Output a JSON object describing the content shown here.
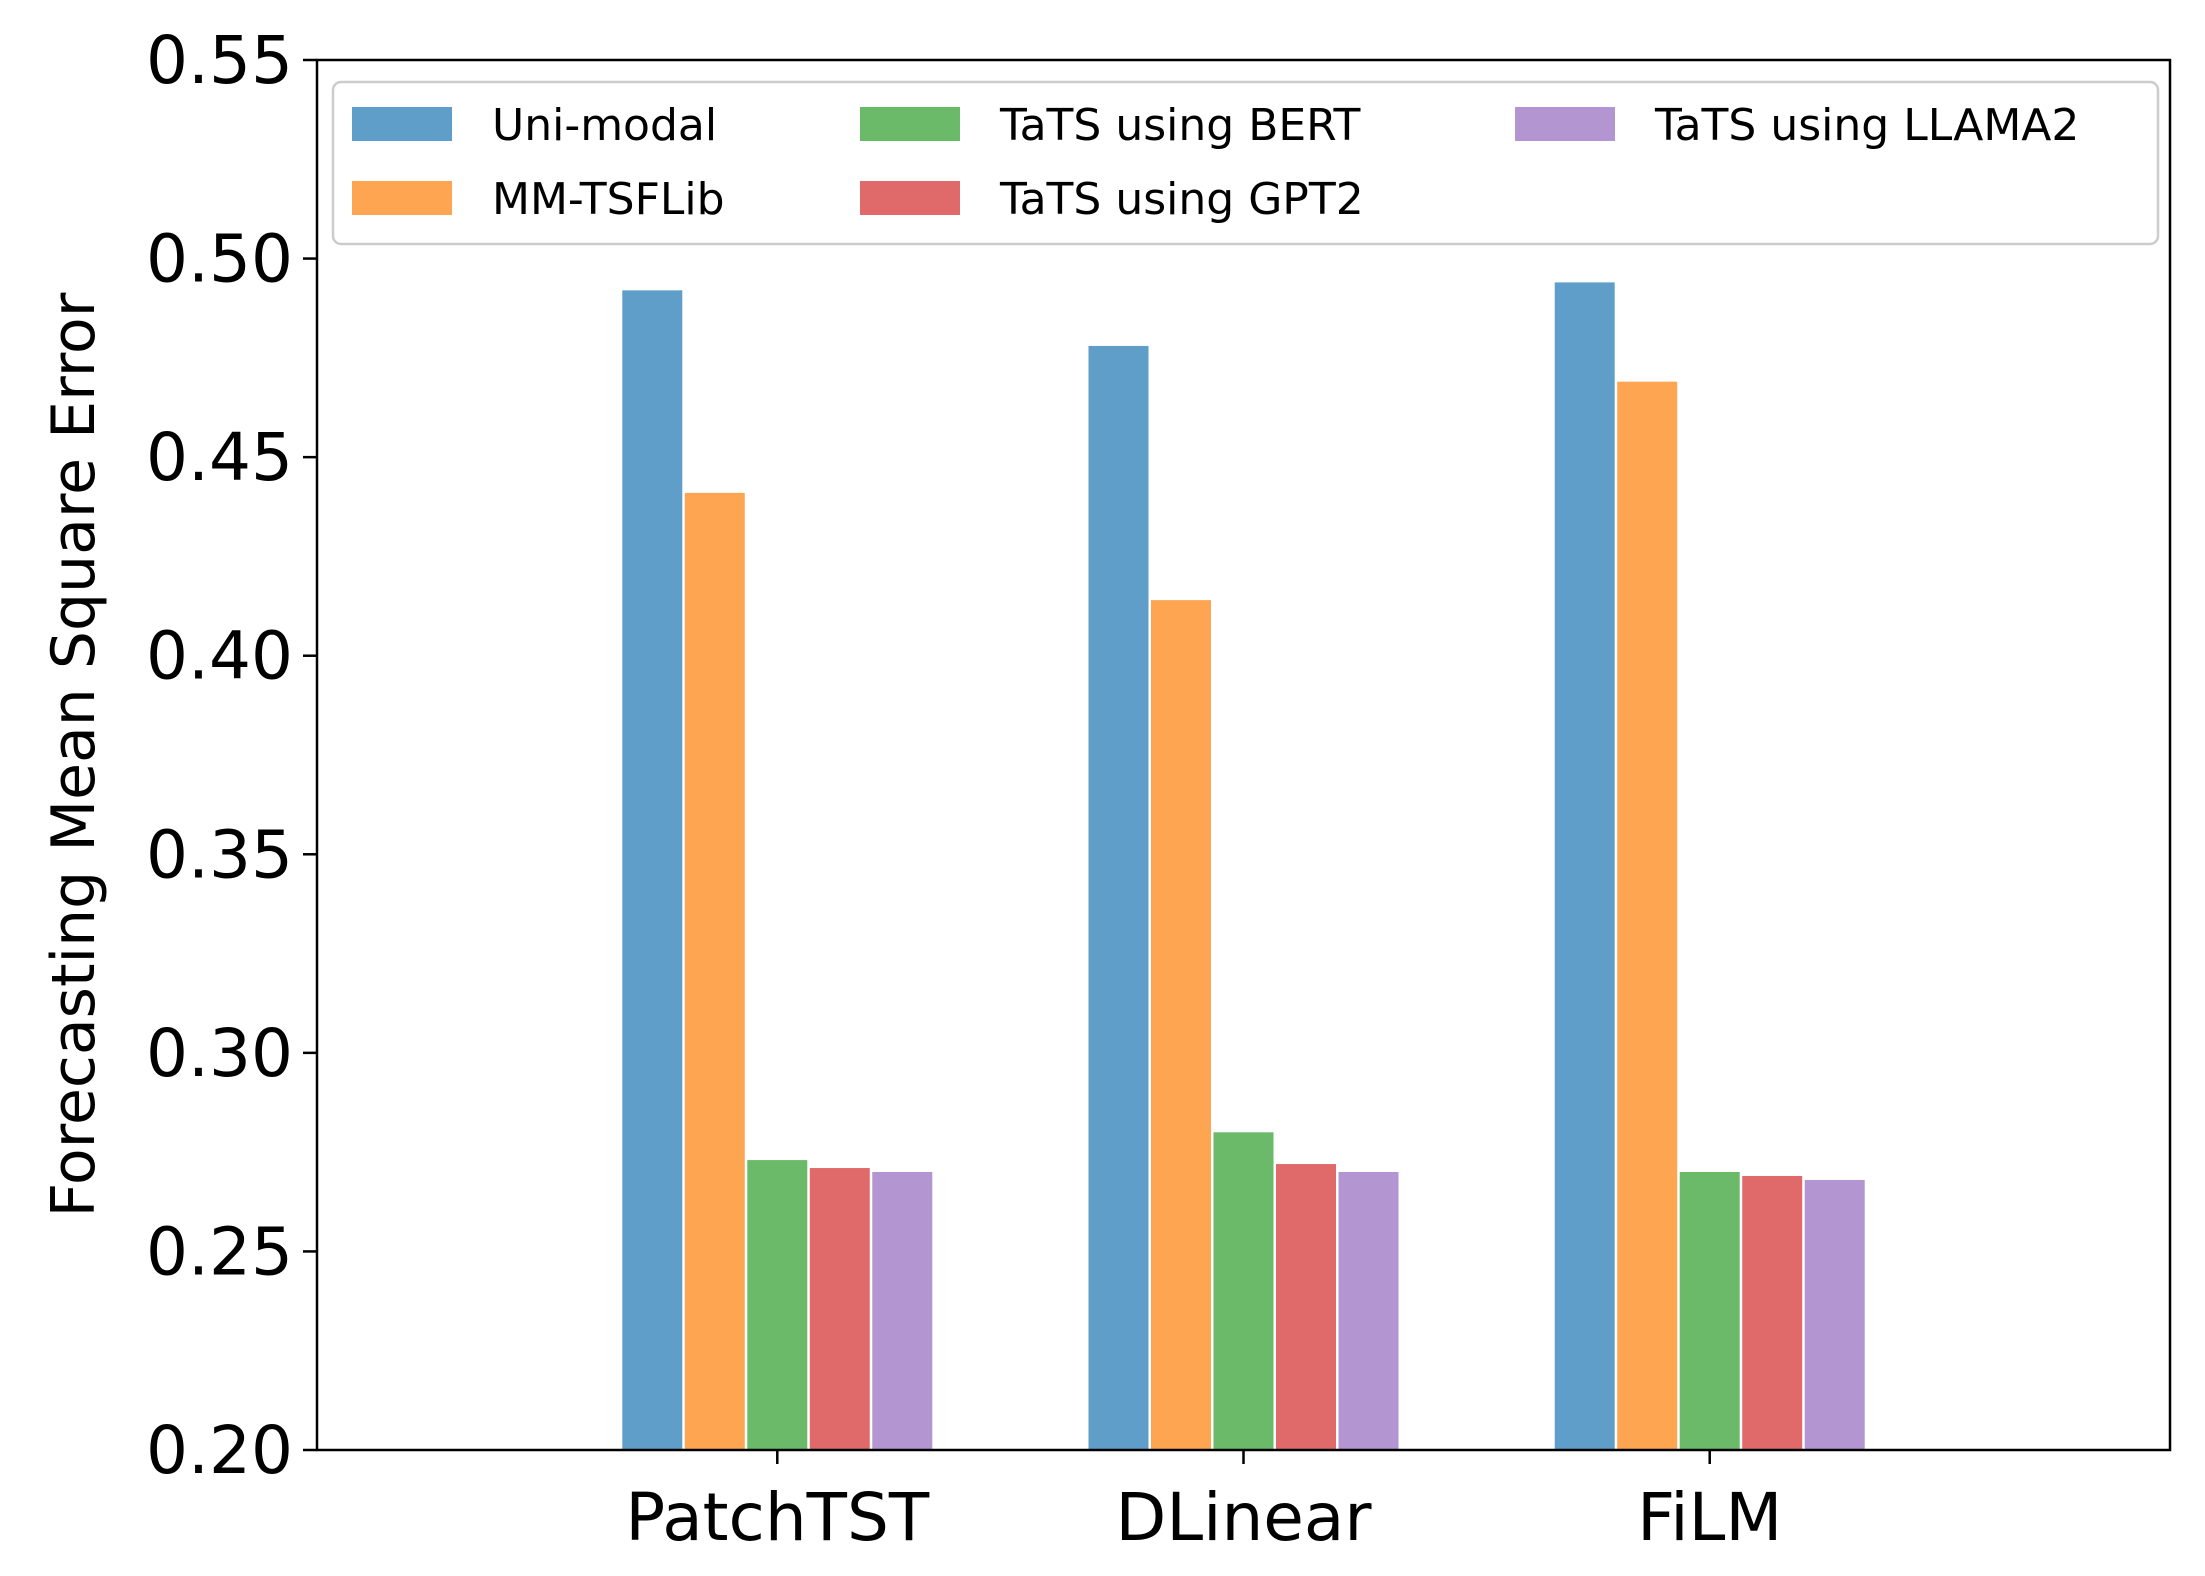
{
  "chart_data": {
    "type": "bar",
    "title": "",
    "xlabel": "",
    "ylabel": "Forecasting Mean Square Error",
    "ylim": [
      0.2,
      0.55
    ],
    "yticks": [
      "0.20",
      "0.25",
      "0.30",
      "0.35",
      "0.40",
      "0.45",
      "0.50",
      "0.55"
    ],
    "categories": [
      "PatchTST",
      "DLinear",
      "FiLM"
    ],
    "legend_position": "top",
    "series": [
      {
        "name": "Uni-modal",
        "color": "#5f9ec9",
        "values": [
          0.492,
          0.478,
          0.494
        ]
      },
      {
        "name": "MM-TSFLib",
        "color": "#fea552",
        "values": [
          0.441,
          0.414,
          0.469
        ]
      },
      {
        "name": "TaTS using BERT",
        "color": "#6aba6a",
        "values": [
          0.273,
          0.28,
          0.27
        ]
      },
      {
        "name": "TaTS using GPT2",
        "color": "#e06a6a",
        "values": [
          0.271,
          0.272,
          0.269
        ]
      },
      {
        "name": "TaTS using LLAMA2",
        "color": "#b295d1",
        "values": [
          0.27,
          0.27,
          0.268
        ]
      }
    ]
  }
}
